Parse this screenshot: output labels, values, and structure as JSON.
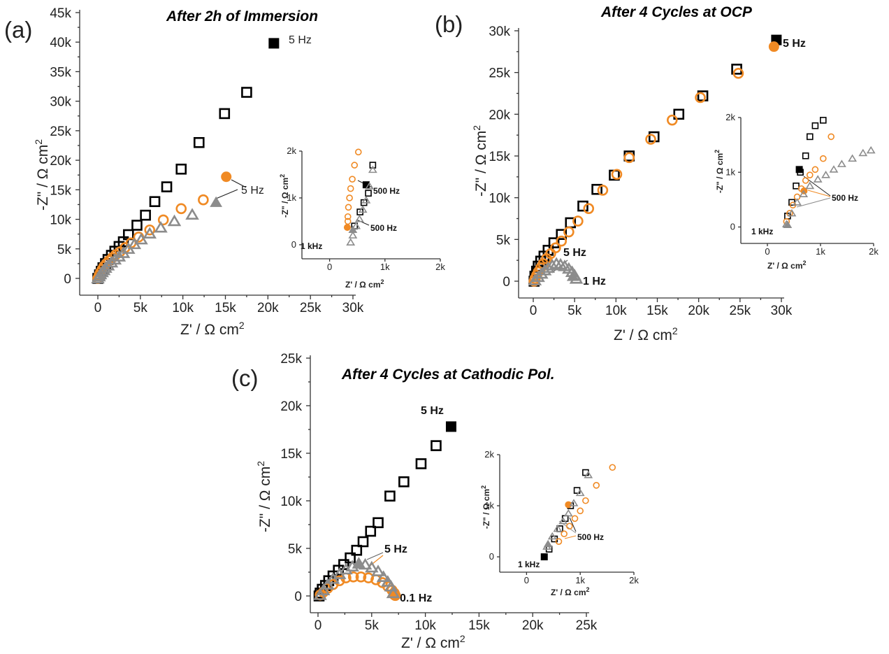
{
  "colors": {
    "black_series": "#000000",
    "orange_series": "#f08a24",
    "gray_series": "#8c8c8c",
    "axis": "#333333"
  },
  "chart_data": [
    {
      "panel": "(a)",
      "title": "After 2h of Immersion",
      "type": "scatter",
      "xlabel": "Z' / Ω cm",
      "ylabel": "-Z\" / Ω cm",
      "xlim": [
        0,
        30000
      ],
      "ylim": [
        0,
        45000
      ],
      "xticks": [
        0,
        5000,
        10000,
        15000,
        20000,
        25000,
        30000
      ],
      "xtick_labels": [
        "0",
        "5k",
        "10k",
        "15k",
        "20k",
        "25k",
        "30k"
      ],
      "yticks": [
        0,
        5000,
        10000,
        15000,
        20000,
        25000,
        30000,
        35000,
        40000,
        45000
      ],
      "ytick_labels": [
        "0",
        "5k",
        "10k",
        "15k",
        "20k",
        "25k",
        "30k",
        "35k",
        "40k",
        "45k"
      ],
      "series": [
        {
          "color": "black",
          "marker": "square",
          "x": [
            0,
            200,
            400,
            600,
            900,
            1200,
            1600,
            2000,
            2500,
            3000,
            3600,
            4600,
            5600,
            6700,
            8100,
            9800,
            11900,
            14900,
            17500
          ],
          "y": [
            0,
            600,
            1200,
            1800,
            2500,
            3200,
            3900,
            4600,
            5400,
            6200,
            7400,
            9000,
            10700,
            13000,
            15500,
            18500,
            23000,
            27900,
            31500
          ],
          "highlight": {
            "x": 20700,
            "y": 39800,
            "label": "5 Hz"
          }
        },
        {
          "color": "orange",
          "marker": "circle",
          "x": [
            0,
            150,
            300,
            500,
            700,
            1000,
            1300,
            1700,
            2100,
            2600,
            3200,
            3900,
            4800,
            6100,
            7700,
            9800,
            12400
          ],
          "y": [
            0,
            500,
            1000,
            1500,
            2000,
            2500,
            3000,
            3500,
            4000,
            4500,
            5200,
            6000,
            7000,
            8200,
            9900,
            11800,
            13300
          ],
          "highlight": {
            "x": 15100,
            "y": 17200,
            "label": "5 Hz"
          }
        },
        {
          "color": "gray",
          "marker": "triangle",
          "x": [
            0,
            150,
            300,
            500,
            700,
            900,
            1200,
            1600,
            2000,
            2500,
            3000,
            3600,
            4300,
            5100,
            6100,
            7400,
            9000,
            11100
          ],
          "y": [
            0,
            350,
            700,
            1050,
            1400,
            1800,
            2200,
            2700,
            3200,
            3700,
            4300,
            5000,
            5800,
            6600,
            7600,
            8600,
            9700,
            10800
          ],
          "highlight": {
            "x": 13900,
            "y": 12900,
            "label": ""
          }
        }
      ],
      "annotations": [
        "5 Hz",
        "5 Hz"
      ],
      "inset": {
        "xlabel": "Z' / Ω cm",
        "ylabel": "-Z\" / Ω cm",
        "xlim": [
          -500,
          2000
        ],
        "ylim": [
          -300,
          2000
        ],
        "xticks": [
          0,
          1000,
          2000
        ],
        "xtick_labels": [
          "0",
          "1k",
          "2k"
        ],
        "yticks": [
          0,
          1000,
          2000
        ],
        "ytick_labels": [
          "0",
          "1k",
          "2k"
        ],
        "annotations": [
          "500 Hz",
          "500 Hz",
          "1 kHz"
        ],
        "series": [
          {
            "color": "black",
            "marker": "square",
            "x": [
              450,
              550,
              620,
              700,
              780
            ],
            "y": [
              400,
              700,
              900,
              1100,
              1700
            ],
            "highlight": {
              "x": 660,
              "y": 1280
            }
          },
          {
            "color": "orange",
            "marker": "circle",
            "x": [
              330,
              330,
              340,
              360,
              380,
              410,
              450,
              520
            ],
            "y": [
              500,
              600,
              800,
              1000,
              1200,
              1400,
              1700,
              1980
            ],
            "highlight": {
              "x": 320,
              "y": 370
            }
          },
          {
            "color": "gray",
            "marker": "triangle",
            "x": [
              380,
              420,
              480,
              540,
              600,
              660,
              720,
              780
            ],
            "y": [
              50,
              200,
              400,
              550,
              750,
              950,
              1250,
              1600
            ],
            "highlight": {
              "x": 420,
              "y": 320
            }
          }
        ]
      }
    },
    {
      "panel": "(b)",
      "title": "After 4 Cycles at OCP",
      "type": "scatter",
      "xlabel": "Z' / Ω cm",
      "ylabel": "-Z\" / Ω cm",
      "xlim": [
        0,
        30000
      ],
      "ylim": [
        0,
        30000
      ],
      "xticks": [
        0,
        5000,
        10000,
        15000,
        20000,
        25000,
        30000
      ],
      "xtick_labels": [
        "0",
        "5k",
        "10k",
        "15k",
        "20k",
        "25k",
        "30k"
      ],
      "yticks": [
        0,
        5000,
        10000,
        15000,
        20000,
        25000,
        30000
      ],
      "ytick_labels": [
        "0",
        "5k",
        "10k",
        "15k",
        "20k",
        "25k",
        "30k"
      ],
      "series": [
        {
          "color": "black",
          "marker": "square",
          "x": [
            100,
            200,
            400,
            600,
            900,
            1300,
            1800,
            2500,
            3400,
            4500,
            6000,
            7700,
            9800,
            11600,
            14600,
            17600,
            20500,
            24600
          ],
          "y": [
            0,
            600,
            1200,
            1800,
            2400,
            3000,
            3700,
            4600,
            5600,
            7000,
            9000,
            11000,
            12700,
            15000,
            17300,
            20000,
            22200,
            25400
          ],
          "highlight": {
            "x": 29400,
            "y": 28900,
            "label": "5 Hz"
          }
        },
        {
          "color": "orange",
          "marker": "circle",
          "x": [
            100,
            200,
            400,
            600,
            900,
            1200,
            1600,
            2100,
            2700,
            3400,
            4300,
            5400,
            6700,
            8400,
            10100,
            11600,
            14200,
            16800,
            20200,
            24800
          ],
          "y": [
            0,
            300,
            700,
            1100,
            1600,
            2100,
            2700,
            3300,
            4000,
            4800,
            5900,
            7200,
            8700,
            10900,
            12800,
            14800,
            17000,
            19300,
            22000,
            24900
          ],
          "highlight": {
            "x": 29100,
            "y": 28100,
            "label": "5 Hz"
          }
        },
        {
          "color": "gray",
          "marker": "triangle",
          "x": [
            200,
            600,
            1000,
            1400,
            1800,
            2300,
            2800,
            3300,
            3800,
            4300,
            4700,
            5000,
            5200
          ],
          "y": [
            100,
            500,
            900,
            1300,
            1600,
            1900,
            2100,
            2000,
            1800,
            1500,
            1100,
            700,
            300
          ],
          "highlight": {
            "x": 4800,
            "y": 600,
            "label": "1 Hz"
          }
        }
      ],
      "annotations": [
        "5 Hz",
        "5 Hz",
        "1 Hz"
      ],
      "inset": {
        "xlabel": "Z' / Ω cm",
        "ylabel": "-Z\" / Ω cm",
        "xlim": [
          -500,
          2000
        ],
        "ylim": [
          -300,
          2000
        ],
        "xticks": [
          0,
          1000,
          2000
        ],
        "xtick_labels": [
          "0",
          "1k",
          "2k"
        ],
        "yticks": [
          0,
          1000,
          2000
        ],
        "ytick_labels": [
          "0",
          "1k",
          "2k"
        ],
        "annotations": [
          "500 Hz",
          "1 kHz"
        ],
        "series": [
          {
            "color": "black",
            "marker": "square",
            "x": [
              380,
              460,
              540,
              620,
              720,
              800,
              900,
              1050
            ],
            "y": [
              200,
              450,
              750,
              1000,
              1300,
              1650,
              1850,
              1950
            ],
            "highlight": {
              "x": 600,
              "y": 1050
            }
          },
          {
            "color": "orange",
            "marker": "circle",
            "x": [
              360,
              420,
              480,
              560,
              640,
              720,
              800,
              900,
              1050,
              1200
            ],
            "y": [
              100,
              250,
              400,
              550,
              700,
              850,
              950,
              1050,
              1250,
              1650
            ],
            "highlight": {
              "x": 690,
              "y": 660
            }
          },
          {
            "color": "gray",
            "marker": "triangle",
            "x": [
              360,
              460,
              560,
              680,
              800,
              950,
              1100,
              1250,
              1400,
              1600,
              1800,
              1950
            ],
            "y": [
              50,
              250,
              450,
              600,
              750,
              870,
              950,
              1050,
              1150,
              1250,
              1350,
              1400
            ],
            "highlight": {
              "x": 380,
              "y": 40
            }
          }
        ]
      }
    },
    {
      "panel": "(c)",
      "title": "After 4 Cycles at Cathodic Pol.",
      "type": "scatter",
      "xlabel": "Z' / Ω cm",
      "ylabel": "-Z\" / Ω cm",
      "xlim": [
        0,
        25000
      ],
      "ylim": [
        0,
        25000
      ],
      "xticks": [
        0,
        5000,
        10000,
        15000,
        20000,
        25000
      ],
      "xtick_labels": [
        "0",
        "5k",
        "10k",
        "15k",
        "20k",
        "25k"
      ],
      "yticks": [
        0,
        5000,
        10000,
        15000,
        20000,
        25000
      ],
      "ytick_labels": [
        "0",
        "5k",
        "10k",
        "15k",
        "20k",
        "25k"
      ],
      "series": [
        {
          "color": "black",
          "marker": "square",
          "x": [
            100,
            200,
            400,
            700,
            1000,
            1400,
            1900,
            2400,
            3000,
            3600,
            4200,
            4900,
            5600,
            6700,
            8000,
            9600,
            11000
          ],
          "y": [
            0,
            300,
            700,
            1100,
            1600,
            2100,
            2700,
            3300,
            4000,
            4800,
            5700,
            6800,
            7700,
            10500,
            12000,
            13900,
            15800
          ],
          "highlight": {
            "x": 12400,
            "y": 17800,
            "label": "5 Hz"
          }
        },
        {
          "color": "orange",
          "marker": "circle",
          "x": [
            200,
            500,
            900,
            1400,
            2000,
            2600,
            3300,
            4000,
            4700,
            5400,
            6000,
            6500,
            6900,
            7100,
            7200
          ],
          "y": [
            100,
            400,
            800,
            1200,
            1600,
            1900,
            2000,
            2000,
            1900,
            1700,
            1400,
            1000,
            600,
            300,
            50
          ],
          "highlight": {
            "x": 7100,
            "y": 100,
            "label": "0.1 Hz"
          }
        },
        {
          "color": "gray",
          "marker": "triangle",
          "x": [
            200,
            500,
            900,
            1400,
            2000,
            2600,
            3200,
            3800,
            4400,
            5000,
            5600,
            6100,
            6500,
            6800,
            7000
          ],
          "y": [
            100,
            600,
            1200,
            1800,
            2300,
            2800,
            3100,
            3400,
            3300,
            3000,
            2600,
            2000,
            1500,
            1000,
            300
          ],
          "highlight": {
            "x": 3800,
            "y": 3500,
            "label": "5 Hz"
          }
        }
      ],
      "annotations": [
        "5 Hz",
        "5 Hz",
        "0.1 Hz"
      ],
      "inset": {
        "xlabel": "Z' / Ω cm",
        "ylabel": "-Z\" / Ω cm",
        "xlim": [
          -500,
          2000
        ],
        "ylim": [
          -300,
          2000
        ],
        "xticks": [
          0,
          1000,
          2000
        ],
        "xtick_labels": [
          "0",
          "1k",
          "2k"
        ],
        "yticks": [
          0,
          1000,
          2000
        ],
        "ytick_labels": [
          "0",
          "1k",
          "2k"
        ],
        "annotations": [
          "500 Hz",
          "1 kHz"
        ],
        "series": [
          {
            "color": "black",
            "marker": "square",
            "x": [
              420,
              520,
              620,
              720,
              820,
              940,
              1100
            ],
            "y": [
              150,
              350,
              550,
              750,
              1000,
              1300,
              1650
            ],
            "highlight": {
              "x": 330,
              "y": 0
            }
          },
          {
            "color": "orange",
            "marker": "circle",
            "x": [
              600,
              700,
              800,
              900,
              1000,
              1100,
              1300,
              1600
            ],
            "y": [
              300,
              450,
              600,
              750,
              900,
              1100,
              1400,
              1750
            ],
            "highlight": {
              "x": 780,
              "y": 1020
            }
          },
          {
            "color": "gray",
            "marker": "triangle",
            "x": [
              380,
              480,
              580,
              680,
              780,
              880,
              1000,
              1150
            ],
            "y": [
              200,
              400,
              550,
              700,
              850,
              1050,
              1250,
              1600
            ],
            "highlight": {
              "x": 400,
              "y": 250
            }
          }
        ]
      }
    }
  ]
}
